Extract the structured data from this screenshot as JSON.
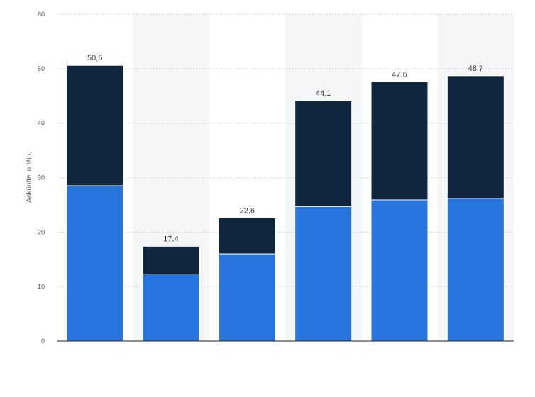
{
  "chart_data": {
    "type": "bar",
    "stacked": true,
    "title": "",
    "xlabel": "",
    "ylabel": "Ankünfte in Mio.",
    "ylim": [
      0,
      60
    ],
    "yticks": [
      0,
      10,
      20,
      30,
      40,
      50,
      60
    ],
    "ytick_labels": [
      "0",
      "10",
      "20",
      "30",
      "40",
      "50",
      "60"
    ],
    "grid": true,
    "legend": "none",
    "categories": [
      "",
      "",
      "",
      "",
      "",
      ""
    ],
    "series": [
      {
        "color": "#2876dd",
        "values": [
          28.5,
          12.3,
          16.0,
          24.7,
          25.9,
          26.2
        ]
      },
      {
        "color": "#10263f",
        "values": [
          22.1,
          5.1,
          6.6,
          19.4,
          21.7,
          22.5
        ]
      }
    ],
    "totals": [
      50.6,
      17.4,
      22.6,
      44.1,
      47.6,
      48.7
    ],
    "total_labels": [
      "50,6",
      "17,4",
      "22,6",
      "44,1",
      "47,6",
      "48,7"
    ],
    "colors": {
      "grid": "#d7d7d7",
      "band": "#f5f6f8",
      "axis": "#222222"
    }
  }
}
